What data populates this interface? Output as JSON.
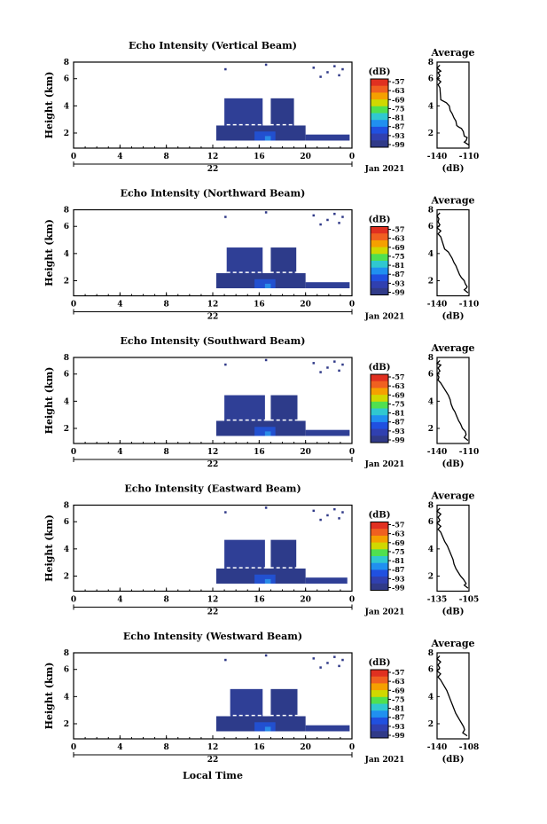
{
  "figure": {
    "bottom_xlabel": "Local Time"
  },
  "colorbar": {
    "unit_label": "(dB)",
    "ticks": [
      "-57",
      "-63",
      "-69",
      "-75",
      "-81",
      "-87",
      "-93",
      "-99"
    ],
    "colors": [
      "#e03020",
      "#f06020",
      "#f5a000",
      "#d0d800",
      "#50e050",
      "#30c8d0",
      "#2090f0",
      "#2050e0",
      "#3040b0",
      "#303a88"
    ]
  },
  "chart_data": [
    {
      "type": "heatmap",
      "title": "Echo Intensity (Vertical Beam)",
      "ylabel": "Height (km)",
      "xlim": [
        0,
        24
      ],
      "ylim": [
        0.5,
        6.2
      ],
      "x_ticks": [
        "0",
        "4",
        "8",
        "12",
        "16",
        "20",
        "0"
      ],
      "y_ticks": [
        "2",
        "4",
        "6",
        "8"
      ],
      "date_day": "22",
      "date_label": "Jan 2021",
      "echo_regions": [
        {
          "x": [
            12.3,
            20.0
          ],
          "y": [
            1.0,
            2.0
          ]
        },
        {
          "x": [
            13.0,
            16.3
          ],
          "y": [
            2.0,
            3.8
          ]
        },
        {
          "x": [
            17.0,
            19.0
          ],
          "y": [
            2.0,
            3.8
          ]
        },
        {
          "x": [
            20.0,
            23.8
          ],
          "y": [
            1.0,
            1.4
          ]
        }
      ],
      "average_profile": {
        "title": "Average",
        "xlabel": "(dB)",
        "x_ticks": [
          "-140",
          "-110"
        ],
        "y_ticks": [
          "2",
          "4",
          "6",
          "8"
        ],
        "xlim": [
          -140,
          -106
        ],
        "ylim": [
          0.5,
          6.2
        ],
        "x": [
          -137,
          -140,
          -136,
          -139,
          -137,
          -140,
          -136,
          -139,
          -137,
          -136,
          -130,
          -127,
          -126,
          -124,
          -122,
          -120,
          -119,
          -117,
          -114,
          -112,
          -111,
          -108,
          -109,
          -111,
          -106
        ],
        "y": [
          6.0,
          5.8,
          5.6,
          5.5,
          5.3,
          5.1,
          4.9,
          4.7,
          4.5,
          3.7,
          3.5,
          3.3,
          3.0,
          2.8,
          2.5,
          2.3,
          2.0,
          1.9,
          1.8,
          1.6,
          1.3,
          1.2,
          1.0,
          0.9,
          0.7
        ]
      }
    },
    {
      "type": "heatmap",
      "title": "Echo Intensity (Northward Beam)",
      "ylabel": "Height (km)",
      "xlim": [
        0,
        24
      ],
      "ylim": [
        0.5,
        6.2
      ],
      "x_ticks": [
        "0",
        "4",
        "8",
        "12",
        "16",
        "20",
        "0"
      ],
      "y_ticks": [
        "2",
        "4",
        "6",
        "8"
      ],
      "date_day": "22",
      "date_label": "Jan 2021",
      "echo_regions": [
        {
          "x": [
            12.3,
            20.0
          ],
          "y": [
            1.0,
            2.0
          ]
        },
        {
          "x": [
            13.2,
            16.3
          ],
          "y": [
            2.0,
            3.7
          ]
        },
        {
          "x": [
            17.0,
            19.2
          ],
          "y": [
            2.0,
            3.7
          ]
        },
        {
          "x": [
            20.0,
            23.8
          ],
          "y": [
            1.0,
            1.4
          ]
        }
      ],
      "average_profile": {
        "title": "Average",
        "xlabel": "(dB)",
        "x_ticks": [
          "-140",
          "-110"
        ],
        "y_ticks": [
          "2",
          "4",
          "6",
          "8"
        ],
        "xlim": [
          -140,
          -106
        ],
        "ylim": [
          0.5,
          6.2
        ],
        "x": [
          -137,
          -140,
          -138,
          -139,
          -137,
          -140,
          -136,
          -139,
          -136,
          -132,
          -128,
          -126,
          -124,
          -122,
          -120,
          -118,
          -116,
          -114,
          -111,
          -110,
          -108,
          -109,
          -111,
          -107
        ],
        "y": [
          6.0,
          5.8,
          5.6,
          5.4,
          5.2,
          5.0,
          4.8,
          4.6,
          4.4,
          3.6,
          3.4,
          3.2,
          3.0,
          2.7,
          2.5,
          2.2,
          1.9,
          1.7,
          1.5,
          1.3,
          1.1,
          1.0,
          0.9,
          0.7
        ]
      }
    },
    {
      "type": "heatmap",
      "title": "Echo Intensity (Southward Beam)",
      "ylabel": "Height (km)",
      "xlim": [
        0,
        24
      ],
      "ylim": [
        0.5,
        6.2
      ],
      "x_ticks": [
        "0",
        "4",
        "8",
        "12",
        "16",
        "20",
        "0"
      ],
      "y_ticks": [
        "2",
        "4",
        "6",
        "8"
      ],
      "date_day": "22",
      "date_label": "Jan 2021",
      "echo_regions": [
        {
          "x": [
            12.3,
            20.0
          ],
          "y": [
            1.0,
            2.0
          ]
        },
        {
          "x": [
            13.0,
            16.5
          ],
          "y": [
            2.0,
            3.7
          ]
        },
        {
          "x": [
            17.0,
            19.3
          ],
          "y": [
            2.0,
            3.7
          ]
        },
        {
          "x": [
            20.0,
            23.8
          ],
          "y": [
            1.0,
            1.4
          ]
        }
      ],
      "average_profile": {
        "title": "Average",
        "xlabel": "(dB)",
        "x_ticks": [
          "-140",
          "-110"
        ],
        "y_ticks": [
          "2",
          "4",
          "6",
          "8"
        ],
        "xlim": [
          -140,
          -106
        ],
        "ylim": [
          0.5,
          6.2
        ],
        "x": [
          -137,
          -140,
          -136,
          -139,
          -137,
          -140,
          -138,
          -139,
          -136,
          -128,
          -126,
          -125,
          -123,
          -121,
          -119,
          -117,
          -115,
          -113,
          -110,
          -109,
          -110,
          -111,
          -107
        ],
        "y": [
          6.0,
          5.8,
          5.7,
          5.5,
          5.3,
          5.1,
          4.9,
          4.7,
          4.5,
          3.7,
          3.4,
          3.1,
          2.8,
          2.6,
          2.3,
          2.0,
          1.8,
          1.5,
          1.3,
          1.1,
          1.0,
          0.9,
          0.7
        ]
      }
    },
    {
      "type": "heatmap",
      "title": "Echo Intensity (Eastward Beam)",
      "ylabel": "Height (km)",
      "xlim": [
        0,
        24
      ],
      "ylim": [
        0.5,
        6.2
      ],
      "x_ticks": [
        "0",
        "4",
        "8",
        "12",
        "16",
        "20",
        "0"
      ],
      "y_ticks": [
        "2",
        "4",
        "6",
        "8"
      ],
      "date_day": "22",
      "date_label": "Jan 2021",
      "echo_regions": [
        {
          "x": [
            12.3,
            20.0
          ],
          "y": [
            1.0,
            2.0
          ]
        },
        {
          "x": [
            13.0,
            16.5
          ],
          "y": [
            2.0,
            3.9
          ]
        },
        {
          "x": [
            17.0,
            19.2
          ],
          "y": [
            2.0,
            3.9
          ]
        },
        {
          "x": [
            20.0,
            23.6
          ],
          "y": [
            1.0,
            1.4
          ]
        }
      ],
      "average_profile": {
        "title": "Average",
        "xlabel": "(dB)",
        "x_ticks": [
          "-135",
          "-105"
        ],
        "y_ticks": [
          "2",
          "4",
          "6",
          "8"
        ],
        "xlim": [
          -135,
          -101
        ],
        "ylim": [
          0.5,
          6.2
        ],
        "x": [
          -132,
          -135,
          -131,
          -134,
          -132,
          -135,
          -131,
          -134,
          -131,
          -127,
          -124,
          -122,
          -120,
          -118,
          -117,
          -115,
          -113,
          -110,
          -107,
          -105,
          -104,
          -106,
          -102
        ],
        "y": [
          6.0,
          5.8,
          5.6,
          5.4,
          5.2,
          5.0,
          4.8,
          4.6,
          4.4,
          3.8,
          3.5,
          3.2,
          2.9,
          2.6,
          2.3,
          2.0,
          1.8,
          1.5,
          1.3,
          1.1,
          1.0,
          0.9,
          0.7
        ]
      }
    },
    {
      "type": "heatmap",
      "title": "Echo Intensity (Westward Beam)",
      "ylabel": "Height (km)",
      "xlim": [
        0,
        24
      ],
      "ylim": [
        0.5,
        6.2
      ],
      "x_ticks": [
        "0",
        "4",
        "8",
        "12",
        "16",
        "20",
        "0"
      ],
      "y_ticks": [
        "2",
        "4",
        "6",
        "8"
      ],
      "date_day": "22",
      "date_label": "Jan 2021",
      "echo_regions": [
        {
          "x": [
            12.3,
            20.0
          ],
          "y": [
            1.0,
            2.0
          ]
        },
        {
          "x": [
            13.5,
            16.3
          ],
          "y": [
            2.0,
            3.8
          ]
        },
        {
          "x": [
            17.0,
            19.3
          ],
          "y": [
            2.0,
            3.8
          ]
        },
        {
          "x": [
            20.0,
            23.8
          ],
          "y": [
            1.0,
            1.4
          ]
        }
      ],
      "average_profile": {
        "title": "Average",
        "xlabel": "(dB)",
        "x_ticks": [
          "-140",
          "-108"
        ],
        "y_ticks": [
          "2",
          "4",
          "6",
          "8"
        ],
        "xlim": [
          -140,
          -104
        ],
        "ylim": [
          0.5,
          6.2
        ],
        "x": [
          -137,
          -140,
          -136,
          -139,
          -137,
          -140,
          -136,
          -139,
          -136,
          -129,
          -127,
          -125,
          -123,
          -121,
          -119,
          -117,
          -115,
          -112,
          -110,
          -109,
          -110,
          -111,
          -106
        ],
        "y": [
          6.0,
          5.8,
          5.6,
          5.4,
          5.2,
          5.0,
          4.8,
          4.6,
          4.4,
          3.7,
          3.4,
          3.1,
          2.8,
          2.5,
          2.2,
          2.0,
          1.8,
          1.5,
          1.3,
          1.1,
          1.0,
          0.9,
          0.7
        ]
      }
    }
  ]
}
